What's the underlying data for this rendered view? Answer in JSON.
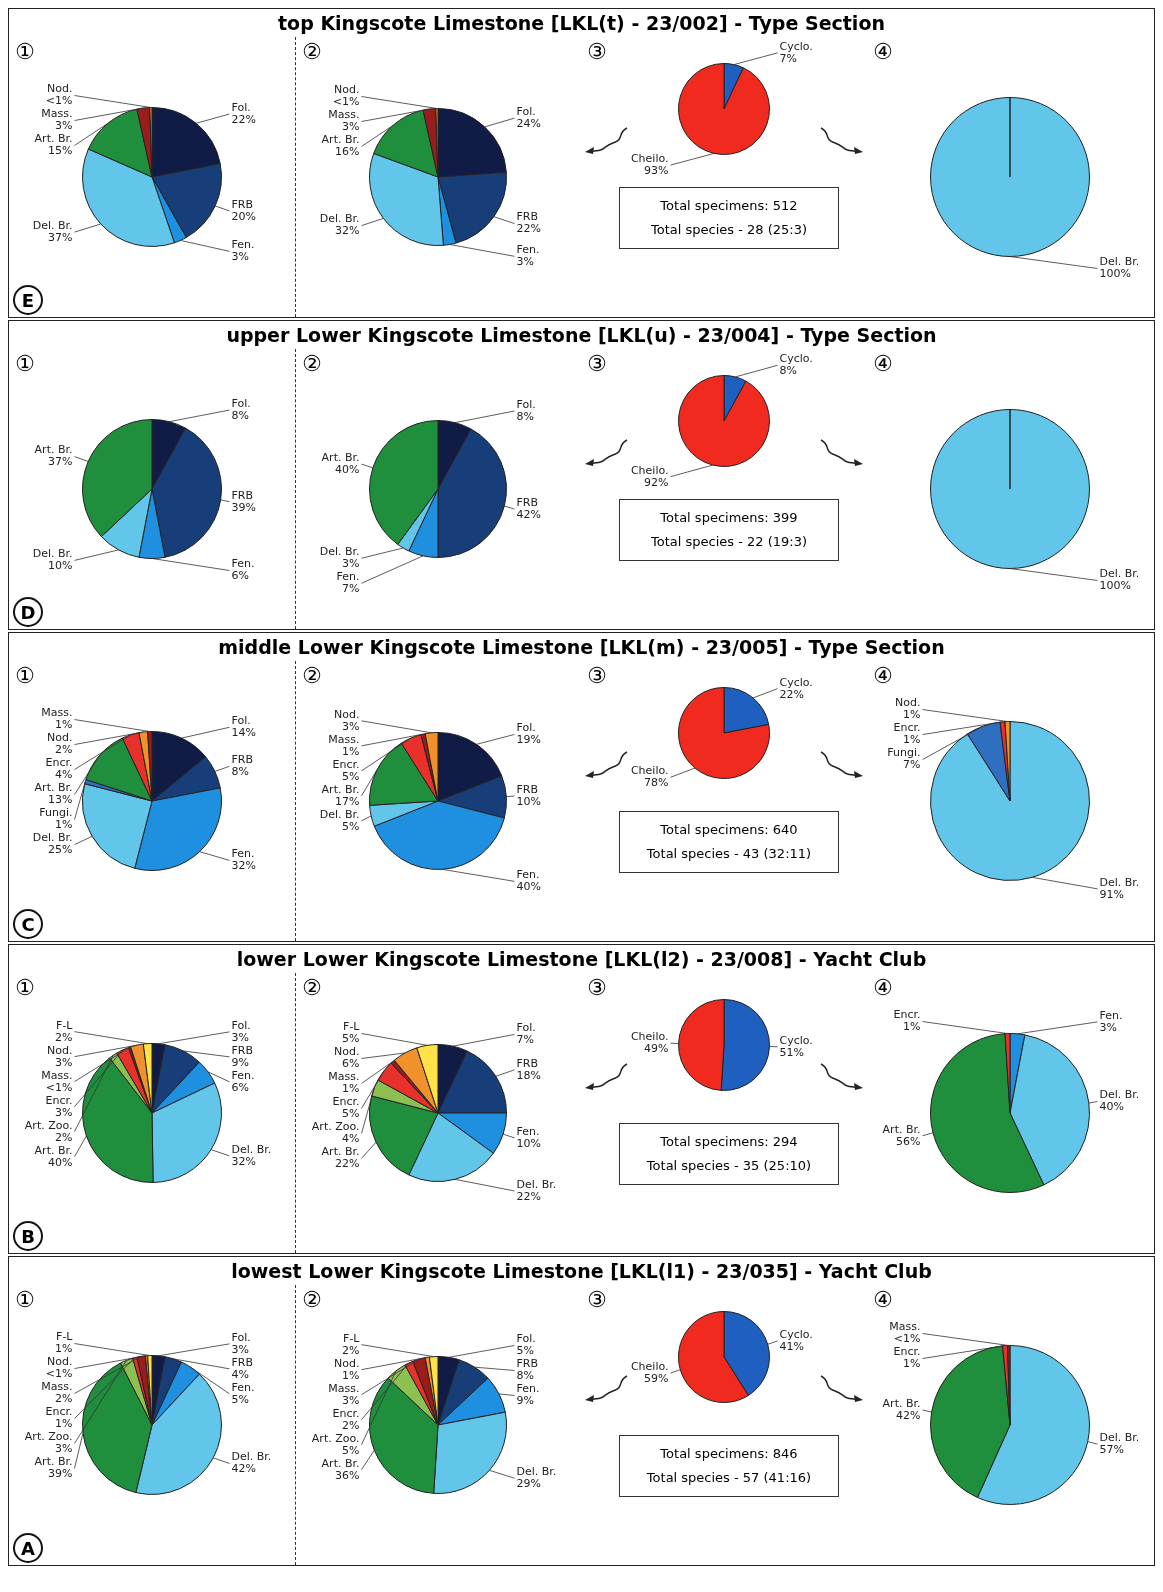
{
  "chart_data": [
    {
      "type": "pie",
      "title": "top Kingscote Limestone [LKL(t) - 23/002] - Type Section",
      "annotations": [
        "①",
        "E"
      ],
      "categories": [
        "Fol.",
        "FRB",
        "Fen.",
        "Del. Br.",
        "Art. Br.",
        "Mass.",
        "Nod."
      ],
      "values": [
        22,
        20,
        3,
        37,
        15,
        3,
        0.5
      ],
      "value_labels": [
        "22%",
        "20%",
        "3%",
        "37%",
        "15%",
        "3%",
        "<1%"
      ],
      "colors": [
        "#101c45",
        "#173e78",
        "#1f8fe0",
        "#62c6ea",
        "#1f8f3e",
        "#9b1c1c",
        "#f0922b"
      ]
    },
    {
      "type": "pie",
      "annotations": [
        "②"
      ],
      "categories": [
        "Fol.",
        "FRB",
        "Fen.",
        "Del. Br.",
        "Art. Br.",
        "Mass.",
        "Nod."
      ],
      "values": [
        24,
        22,
        3,
        32,
        16,
        3,
        0.5
      ],
      "value_labels": [
        "24%",
        "22%",
        "3%",
        "32%",
        "16%",
        "3%",
        "<1%"
      ],
      "colors": [
        "#101c45",
        "#173e78",
        "#1f8fe0",
        "#62c6ea",
        "#1f8f3e",
        "#9b1c1c",
        "#f0922b"
      ]
    },
    {
      "type": "pie",
      "annotations": [
        "③",
        "Total specimens: 512",
        "Total species - 28 (25:3)"
      ],
      "categories": [
        "Cyclo.",
        "Cheilo."
      ],
      "values": [
        7,
        93
      ],
      "value_labels": [
        "7%",
        "93%"
      ],
      "colors": [
        "#1f5fbf",
        "#f02a1e"
      ]
    },
    {
      "type": "pie",
      "annotations": [
        "④"
      ],
      "categories": [
        "Del. Br."
      ],
      "values": [
        100
      ],
      "value_labels": [
        "100%"
      ],
      "colors": [
        "#62c6ea"
      ]
    },
    {
      "type": "pie",
      "title": "upper Lower Kingscote Limestone [LKL(u) - 23/004] - Type Section",
      "annotations": [
        "①",
        "D"
      ],
      "categories": [
        "Fol.",
        "FRB",
        "Fen.",
        "Del. Br.",
        "Art. Br."
      ],
      "values": [
        8,
        39,
        6,
        10,
        37
      ],
      "value_labels": [
        "8%",
        "39%",
        "6%",
        "10%",
        "37%"
      ],
      "colors": [
        "#101c45",
        "#173e78",
        "#1f8fe0",
        "#62c6ea",
        "#1f8f3e"
      ]
    },
    {
      "type": "pie",
      "annotations": [
        "②"
      ],
      "categories": [
        "Fol.",
        "FRB",
        "Fen.",
        "Del. Br.",
        "Art. Br."
      ],
      "values": [
        8,
        42,
        7,
        3,
        40
      ],
      "value_labels": [
        "8%",
        "42%",
        "7%",
        "3%",
        "40%"
      ],
      "colors": [
        "#101c45",
        "#173e78",
        "#1f8fe0",
        "#62c6ea",
        "#1f8f3e"
      ]
    },
    {
      "type": "pie",
      "annotations": [
        "③",
        "Total specimens: 399",
        "Total species - 22 (19:3)"
      ],
      "categories": [
        "Cyclo.",
        "Cheilo."
      ],
      "values": [
        8,
        92
      ],
      "value_labels": [
        "8%",
        "92%"
      ],
      "colors": [
        "#1f5fbf",
        "#f02a1e"
      ]
    },
    {
      "type": "pie",
      "annotations": [
        "④"
      ],
      "categories": [
        "Del. Br."
      ],
      "values": [
        100
      ],
      "value_labels": [
        "100%"
      ],
      "colors": [
        "#62c6ea"
      ]
    },
    {
      "type": "pie",
      "title": "middle Lower Kingscote Limestone [LKL(m) - 23/005] - Type Section",
      "annotations": [
        "①",
        "C"
      ],
      "categories": [
        "Fol.",
        "FRB",
        "Fen.",
        "Del. Br.",
        "Fungi.",
        "Art. Br.",
        "Encr.",
        "Nod.",
        "Mass."
      ],
      "values": [
        14,
        8,
        32,
        25,
        1,
        13,
        4,
        2,
        1
      ],
      "value_labels": [
        "14%",
        "8%",
        "32%",
        "25%",
        "1%",
        "13%",
        "4%",
        "2%",
        "1%"
      ],
      "colors": [
        "#101c45",
        "#173e78",
        "#1f8fe0",
        "#62c6ea",
        "#2f6fbf",
        "#1f8f3e",
        "#e8312a",
        "#f0922b",
        "#9b1c1c"
      ]
    },
    {
      "type": "pie",
      "annotations": [
        "②"
      ],
      "categories": [
        "Fol.",
        "FRB",
        "Fen.",
        "Del. Br.",
        "Art. Br.",
        "Encr.",
        "Mass.",
        "Nod."
      ],
      "values": [
        19,
        10,
        40,
        5,
        17,
        5,
        1,
        3
      ],
      "value_labels": [
        "19%",
        "10%",
        "40%",
        "5%",
        "17%",
        "5%",
        "1%",
        "3%"
      ],
      "colors": [
        "#101c45",
        "#173e78",
        "#1f8fe0",
        "#62c6ea",
        "#1f8f3e",
        "#e8312a",
        "#9b1c1c",
        "#f0922b"
      ]
    },
    {
      "type": "pie",
      "annotations": [
        "③",
        "Total specimens: 640",
        "Total species - 43 (32:11)"
      ],
      "categories": [
        "Cyclo.",
        "Cheilo."
      ],
      "values": [
        22,
        78
      ],
      "value_labels": [
        "22%",
        "78%"
      ],
      "colors": [
        "#1f5fbf",
        "#f02a1e"
      ]
    },
    {
      "type": "pie",
      "annotations": [
        "④"
      ],
      "categories": [
        "Del. Br.",
        "Fungi.",
        "Encr.",
        "Nod."
      ],
      "values": [
        91,
        7,
        1,
        1
      ],
      "value_labels": [
        "91%",
        "7%",
        "1%",
        "1%"
      ],
      "colors": [
        "#62c6ea",
        "#2f6fbf",
        "#e8312a",
        "#f0922b"
      ]
    },
    {
      "type": "pie",
      "title": "lower Lower Kingscote Limestone [LKL(l2) - 23/008] - Yacht Club",
      "annotations": [
        "①",
        "B"
      ],
      "categories": [
        "Fol.",
        "FRB",
        "Fen.",
        "Del. Br.",
        "Art. Br.",
        "Art. Zoo.",
        "Encr.",
        "Mass.",
        "Nod.",
        "F-L"
      ],
      "values": [
        3,
        9,
        6,
        32,
        40,
        2,
        3,
        0.5,
        3,
        2
      ],
      "value_labels": [
        "3%",
        "9%",
        "6%",
        "32%",
        "40%",
        "2%",
        "3%",
        "<1%",
        "3%",
        "2%"
      ],
      "colors": [
        "#101c45",
        "#173e78",
        "#1f8fe0",
        "#62c6ea",
        "#1f8f3e",
        "#8cc152",
        "#e8312a",
        "#9b1c1c",
        "#f0922b",
        "#ffe14a"
      ]
    },
    {
      "type": "pie",
      "annotations": [
        "②"
      ],
      "categories": [
        "Fol.",
        "FRB",
        "Fen.",
        "Del. Br.",
        "Art. Br.",
        "Art. Zoo.",
        "Encr.",
        "Mass.",
        "Nod.",
        "F-L"
      ],
      "values": [
        7,
        18,
        10,
        22,
        22,
        4,
        5,
        1,
        6,
        5
      ],
      "value_labels": [
        "7%",
        "18%",
        "10%",
        "22%",
        "22%",
        "4%",
        "5%",
        "1%",
        "6%",
        "5%"
      ],
      "colors": [
        "#101c45",
        "#173e78",
        "#1f8fe0",
        "#62c6ea",
        "#1f8f3e",
        "#8cc152",
        "#e8312a",
        "#9b1c1c",
        "#f0922b",
        "#ffe14a"
      ]
    },
    {
      "type": "pie",
      "annotations": [
        "③",
        "Total specimens: 294",
        "Total species - 35 (25:10)"
      ],
      "categories": [
        "Cyclo.",
        "Cheilo."
      ],
      "values": [
        51,
        49
      ],
      "value_labels": [
        "51%",
        "49%"
      ],
      "colors": [
        "#1f5fbf",
        "#f02a1e"
      ]
    },
    {
      "type": "pie",
      "annotations": [
        "④"
      ],
      "categories": [
        "Fen.",
        "Del. Br.",
        "Art. Br.",
        "Encr."
      ],
      "values": [
        3,
        40,
        56,
        1
      ],
      "value_labels": [
        "3%",
        "40%",
        "56%",
        "1%"
      ],
      "colors": [
        "#1f8fe0",
        "#62c6ea",
        "#1f8f3e",
        "#e8312a"
      ]
    },
    {
      "type": "pie",
      "title": "lowest Lower Kingscote Limestone [LKL(l1) - 23/035] - Yacht Club",
      "annotations": [
        "①",
        "A"
      ],
      "categories": [
        "Fol.",
        "FRB",
        "Fen.",
        "Del. Br.",
        "Art. Br.",
        "Art. Zoo.",
        "Encr.",
        "Mass.",
        "Nod.",
        "F-L"
      ],
      "values": [
        3,
        4,
        5,
        42,
        39,
        3,
        1,
        2,
        0.5,
        1
      ],
      "value_labels": [
        "3%",
        "4%",
        "5%",
        "42%",
        "39%",
        "3%",
        "1%",
        "2%",
        "<1%",
        "1%"
      ],
      "colors": [
        "#101c45",
        "#173e78",
        "#1f8fe0",
        "#62c6ea",
        "#1f8f3e",
        "#8cc152",
        "#e8312a",
        "#9b1c1c",
        "#f0922b",
        "#ffe14a"
      ]
    },
    {
      "type": "pie",
      "annotations": [
        "②"
      ],
      "categories": [
        "Fol.",
        "FRB",
        "Fen.",
        "Del. Br.",
        "Art. Br.",
        "Art. Zoo.",
        "Encr.",
        "Mass.",
        "Nod.",
        "F-L"
      ],
      "values": [
        5,
        8,
        9,
        29,
        36,
        5,
        2,
        3,
        1,
        2
      ],
      "value_labels": [
        "5%",
        "8%",
        "9%",
        "29%",
        "36%",
        "5%",
        "2%",
        "3%",
        "1%",
        "2%"
      ],
      "colors": [
        "#101c45",
        "#173e78",
        "#1f8fe0",
        "#62c6ea",
        "#1f8f3e",
        "#8cc152",
        "#e8312a",
        "#9b1c1c",
        "#f0922b",
        "#ffe14a"
      ]
    },
    {
      "type": "pie",
      "annotations": [
        "③",
        "Total specimens: 846",
        "Total species - 57 (41:16)"
      ],
      "categories": [
        "Cyclo.",
        "Cheilo."
      ],
      "values": [
        41,
        59
      ],
      "value_labels": [
        "41%",
        "59%"
      ],
      "colors": [
        "#1f5fbf",
        "#f02a1e"
      ]
    },
    {
      "type": "pie",
      "annotations": [
        "④"
      ],
      "categories": [
        "Del. Br.",
        "Art. Br.",
        "Encr.",
        "Mass."
      ],
      "values": [
        57,
        42,
        1,
        0.5
      ],
      "value_labels": [
        "57%",
        "42%",
        "1%",
        "<1%"
      ],
      "colors": [
        "#62c6ea",
        "#1f8f3e",
        "#e8312a",
        "#9b1c1c"
      ]
    }
  ]
}
